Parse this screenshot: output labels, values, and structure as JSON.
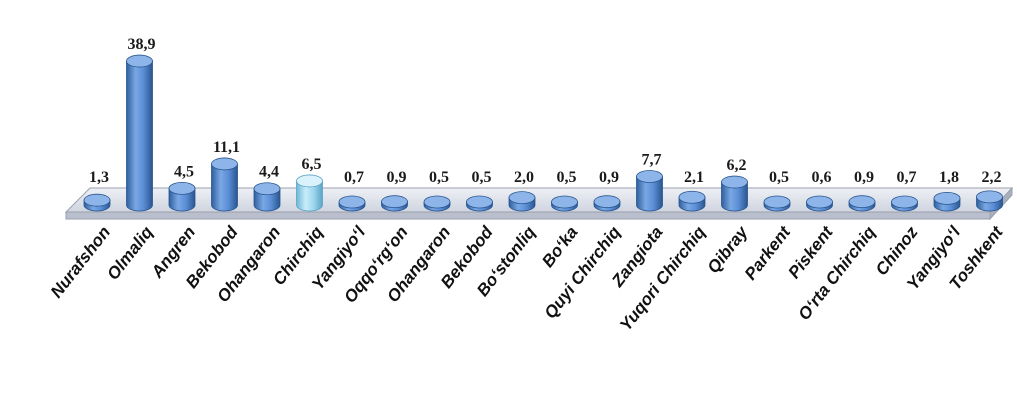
{
  "chart_data": {
    "type": "bar",
    "style": "3d-cylinder",
    "title": "",
    "xlabel": "",
    "ylabel": "",
    "grid": false,
    "legend": "none",
    "categories": [
      "Nurafshon",
      "Olmaliq",
      "Angren",
      "Bekobod",
      "Ohangaron",
      "Chirchiq",
      "Yangiyo‘l",
      "Oqqo‘rg‘on",
      "Ohangaron",
      "Bekobod",
      "Bo‘stonliq",
      "Bo‘ka",
      "Quyi Chirchiq",
      "Zangiota",
      "Yuqori Chirchiq",
      "Qibray",
      "Parkent",
      "Piskent",
      "O‘rta Chirchiq",
      "Chinoz",
      "Yangiyo‘l",
      "Toshkent"
    ],
    "values": [
      1.3,
      38.9,
      4.5,
      11.1,
      4.4,
      6.5,
      0.7,
      0.9,
      0.5,
      0.5,
      2.0,
      0.5,
      0.9,
      7.7,
      2.1,
      6.2,
      0.5,
      0.6,
      0.9,
      0.7,
      1.8,
      2.2
    ],
    "value_labels": [
      "1,3",
      "38,9",
      "4,5",
      "11,1",
      "4,4",
      "6,5",
      "0,7",
      "0,9",
      "0,5",
      "0,5",
      "2,0",
      "0,5",
      "0,9",
      "7,7",
      "2,1",
      "6,2",
      "0,5",
      "0,6",
      "0,9",
      "0,7",
      "1,8",
      "2,2"
    ],
    "ylim": [
      0,
      40
    ],
    "colors": {
      "bar": "#5b8ed6",
      "bar_dark": "#2f5f9e",
      "bar_top": "#8db5ea",
      "highlight": "#9fd7ef",
      "floor": "#d7dbe6"
    },
    "highlight_index": 5
  }
}
